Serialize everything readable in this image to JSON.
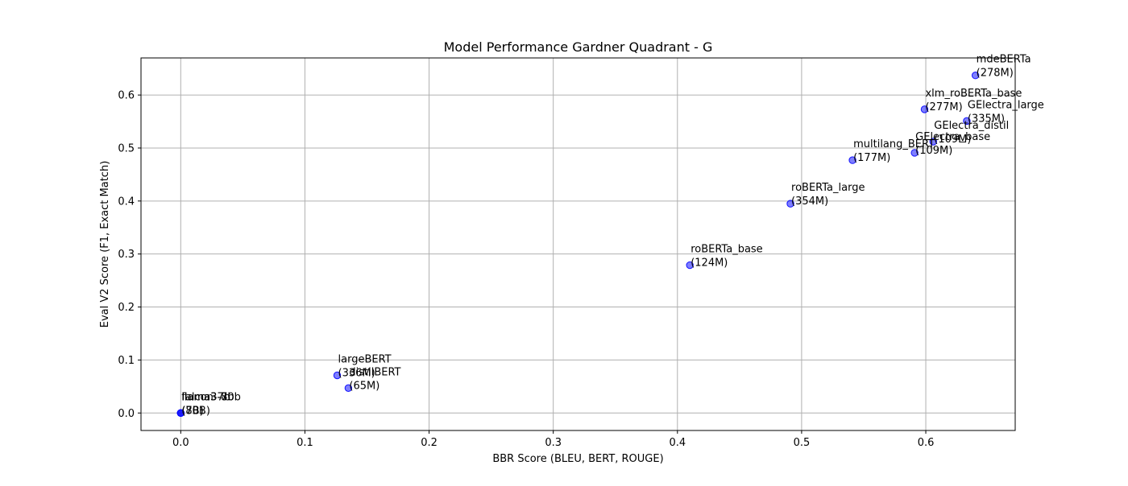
{
  "chart_data": {
    "type": "scatter",
    "title": "Model Performance Gardner Quadrant - G",
    "xlabel": "BBR Score (BLEU, BERT, ROUGE)",
    "ylabel": "Eval V2 Score (F1, Exact Match)",
    "xlim": [
      -0.032,
      0.672
    ],
    "ylim": [
      -0.033,
      0.67
    ],
    "xticks": [
      0.0,
      0.1,
      0.2,
      0.3,
      0.4,
      0.5,
      0.6
    ],
    "yticks": [
      0.0,
      0.1,
      0.2,
      0.3,
      0.4,
      0.5,
      0.6
    ],
    "xtick_labels": [
      "0.0",
      "0.1",
      "0.2",
      "0.3",
      "0.4",
      "0.5",
      "0.6"
    ],
    "ytick_labels": [
      "0.0",
      "0.1",
      "0.2",
      "0.3",
      "0.4",
      "0.5",
      "0.6"
    ],
    "grid": true,
    "point_color": "#0000ff",
    "points": [
      {
        "label": "mdeBERTa",
        "size": "(278M)",
        "x": 0.64,
        "y": 0.637
      },
      {
        "label": "xlm_roBERTa_base",
        "size": "(277M)",
        "x": 0.599,
        "y": 0.573
      },
      {
        "label": "GElectra_large",
        "size": "(335M)",
        "x": 0.633,
        "y": 0.551
      },
      {
        "label": "GElectra_distil",
        "size": "(109M)",
        "x": 0.606,
        "y": 0.512
      },
      {
        "label": "GElectra_base",
        "size": "(109M)",
        "x": 0.591,
        "y": 0.491
      },
      {
        "label": "multilang_BERT",
        "size": "(177M)",
        "x": 0.541,
        "y": 0.477
      },
      {
        "label": "roBERTa_large",
        "size": "(354M)",
        "x": 0.491,
        "y": 0.395
      },
      {
        "label": "roBERTa_base",
        "size": "(124M)",
        "x": 0.41,
        "y": 0.279
      },
      {
        "label": "largeBERT",
        "size": "(336M)",
        "x": 0.126,
        "y": 0.071
      },
      {
        "label": "distilBERT",
        "size": "(65M)",
        "x": 0.135,
        "y": 0.047
      },
      {
        "label": "falcon-7b",
        "size": "(7B)",
        "x": 0.0,
        "y": 0.0
      },
      {
        "label": "llama3-8b",
        "size": "(8B)",
        "x": 0.0,
        "y": 0.0
      },
      {
        "label": "llama3-70b",
        "size": "(70B)",
        "x": 0.0,
        "y": 0.0
      }
    ]
  }
}
